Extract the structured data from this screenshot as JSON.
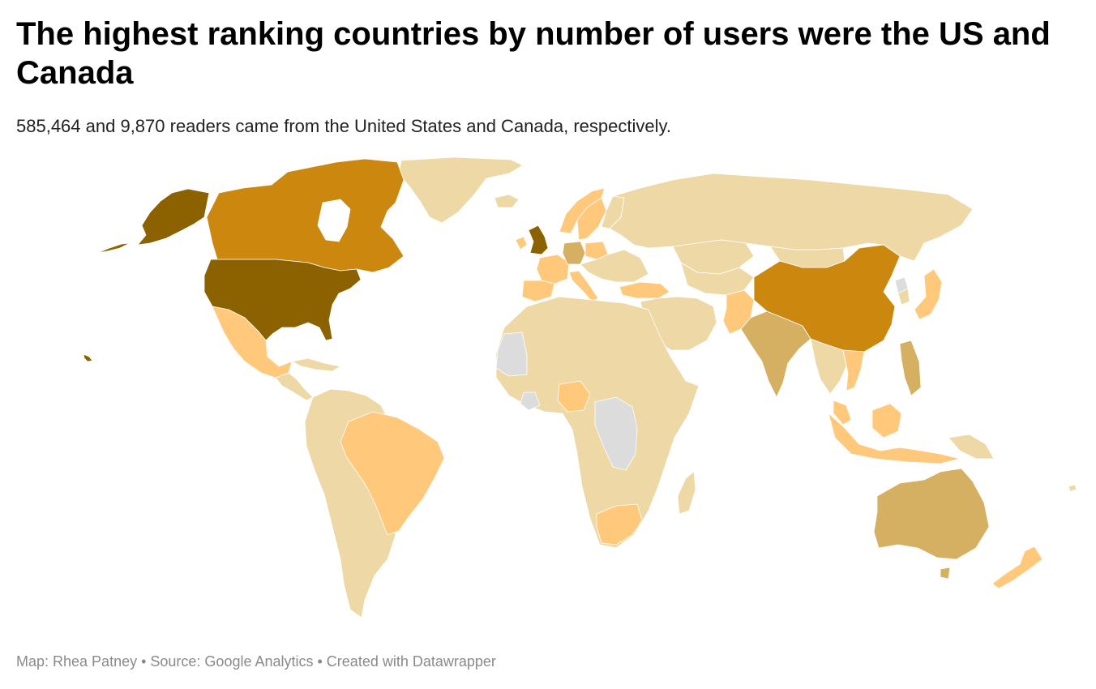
{
  "header": {
    "title": "The highest ranking countries by number of users were the US and Canada",
    "subtitle": "585,464 and 9,870 readers came from the United States and Canada, respectively."
  },
  "footer": {
    "text": "Map: Rhea Patney • Source: Google Analytics • Created with Datawrapper"
  },
  "colors": {
    "highest": "#8c6200",
    "high": "#cc880e",
    "medium": "#d5b062",
    "low": "#ffc87a",
    "lowest": "#eed9a6",
    "no_data": "#dcdcdc"
  },
  "map_data": {
    "type": "choropleth",
    "country_shading": {
      "United States": "highest",
      "Alaska": "highest",
      "United Kingdom": "highest",
      "Canada": "high",
      "China": "high",
      "India": "medium",
      "Australia": "medium",
      "Germany": "medium",
      "Philippines": "medium",
      "Mexico": "low",
      "Brazil": "low",
      "Nigeria": "low",
      "South Africa": "low",
      "Turkey": "low",
      "Japan": "low",
      "France": "low",
      "Spain": "low",
      "Italy": "low",
      "Pakistan": "low",
      "Vietnam": "low",
      "Indonesia": "low",
      "Malaysia": "low",
      "New Zealand": "low",
      "Ireland": "low",
      "Norway": "low",
      "Sweden": "low",
      "Poland": "low",
      "Greenland": "lowest",
      "Russia": "lowest",
      "Africa (other)": "lowest",
      "South America (other)": "lowest",
      "Mauritania": "no_data",
      "Congo DR": "no_data",
      "North Korea": "no_data",
      "Guinea": "no_data"
    }
  }
}
